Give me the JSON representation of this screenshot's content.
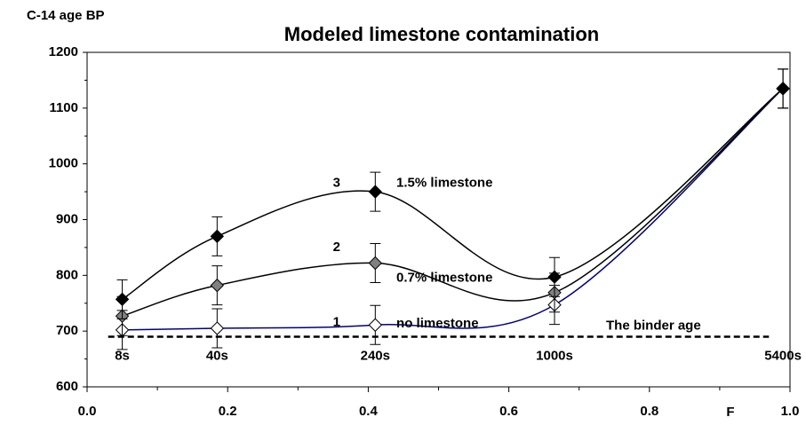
{
  "chart_data": {
    "type": "line",
    "title": "Modeled limestone contamination",
    "y_label": "C-14 age BP",
    "x_label": "F",
    "x": [
      0.05,
      0.185,
      0.41,
      0.665,
      0.99
    ],
    "series": [
      {
        "name": "no limestone",
        "number_label": "1",
        "color": "#000080",
        "marker_color": "#ffffff",
        "values": [
          702,
          705,
          711,
          747,
          1135
        ],
        "errors": [
          35,
          35,
          35,
          35,
          35
        ]
      },
      {
        "name": "0.7% limestone",
        "number_label": "2",
        "color": "#000000",
        "marker_color": "#808080",
        "values": [
          727,
          782,
          822,
          769,
          1135
        ],
        "errors": [
          35,
          35,
          35,
          35,
          35
        ]
      },
      {
        "name": "1.5% limestone",
        "number_label": "3",
        "color": "#000000",
        "marker_color": "#000000",
        "values": [
          757,
          870,
          950,
          797,
          1135
        ],
        "errors": [
          35,
          35,
          35,
          35,
          35
        ]
      }
    ],
    "binder_age": {
      "label": "The binder age",
      "value": 690
    },
    "time_labels": [
      "8s",
      "40s",
      "240s",
      "1000s",
      "5400s"
    ],
    "xlim": [
      0,
      1
    ],
    "xticks": [
      {
        "value": 0,
        "label": "0.0"
      },
      0.2,
      0.4,
      0.6,
      0.8,
      {
        "value": 1,
        "label": "1.0"
      }
    ],
    "ylim": [
      600,
      1200
    ],
    "yticks": [
      600,
      700,
      800,
      900,
      1000,
      1100,
      1200
    ],
    "grid": false
  }
}
